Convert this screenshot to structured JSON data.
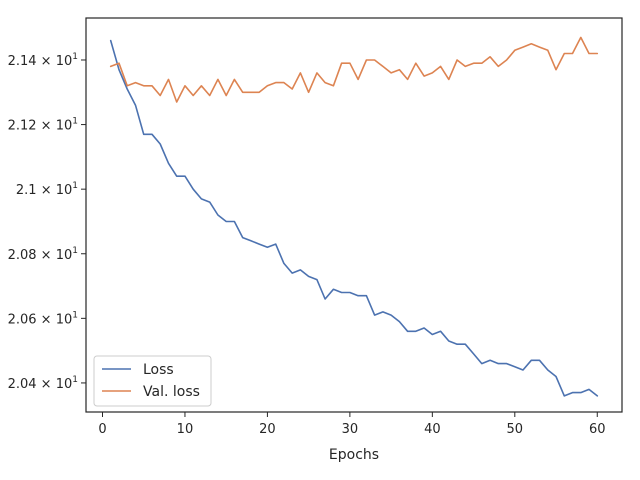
{
  "chart_data": {
    "type": "line",
    "xlabel": "Epochs",
    "ylabel": "",
    "xlim": [
      -2,
      63
    ],
    "ylim": [
      20.31,
      21.53
    ],
    "xticks": [
      0,
      10,
      20,
      30,
      40,
      50,
      60
    ],
    "xtick_labels": [
      "0",
      "10",
      "20",
      "30",
      "40",
      "50",
      "60"
    ],
    "yticks": [
      20.4,
      20.6,
      20.8,
      21.0,
      21.2,
      21.4
    ],
    "ytick_labels": [
      {
        "mantissa": "2.04",
        "exp": "1"
      },
      {
        "mantissa": "2.06",
        "exp": "1"
      },
      {
        "mantissa": "2.08",
        "exp": "1"
      },
      {
        "mantissa": "2.1",
        "exp": "1"
      },
      {
        "mantissa": "2.12",
        "exp": "1"
      },
      {
        "mantissa": "2.14",
        "exp": "1"
      }
    ],
    "legend_position": "lower-left",
    "grid": false,
    "series": [
      {
        "name": "Loss",
        "color": "#4c72b0",
        "x": [
          1,
          2,
          3,
          4,
          5,
          6,
          7,
          8,
          9,
          10,
          11,
          12,
          13,
          14,
          15,
          16,
          17,
          18,
          19,
          20,
          21,
          22,
          23,
          24,
          25,
          26,
          27,
          28,
          29,
          30,
          31,
          32,
          33,
          34,
          35,
          36,
          37,
          38,
          39,
          40,
          41,
          42,
          43,
          44,
          45,
          46,
          47,
          48,
          49,
          50,
          51,
          52,
          53,
          54,
          55,
          56,
          57,
          58,
          59,
          60
        ],
        "values": [
          21.46,
          21.37,
          21.31,
          21.26,
          21.17,
          21.17,
          21.14,
          21.08,
          21.04,
          21.04,
          21.0,
          20.97,
          20.96,
          20.92,
          20.9,
          20.9,
          20.85,
          20.84,
          20.83,
          20.82,
          20.83,
          20.77,
          20.74,
          20.75,
          20.73,
          20.72,
          20.66,
          20.69,
          20.68,
          20.68,
          20.67,
          20.67,
          20.61,
          20.62,
          20.61,
          20.59,
          20.56,
          20.56,
          20.57,
          20.55,
          20.56,
          20.53,
          20.52,
          20.52,
          20.49,
          20.46,
          20.47,
          20.46,
          20.46,
          20.45,
          20.44,
          20.47,
          20.47,
          20.44,
          20.42,
          20.36,
          20.37,
          20.37,
          20.38,
          20.36
        ]
      },
      {
        "name": "Val. loss",
        "color": "#dd8452",
        "x": [
          1,
          2,
          3,
          4,
          5,
          6,
          7,
          8,
          9,
          10,
          11,
          12,
          13,
          14,
          15,
          16,
          17,
          18,
          19,
          20,
          21,
          22,
          23,
          24,
          25,
          26,
          27,
          28,
          29,
          30,
          31,
          32,
          33,
          34,
          35,
          36,
          37,
          38,
          39,
          40,
          41,
          42,
          43,
          44,
          45,
          46,
          47,
          48,
          49,
          50,
          51,
          52,
          53,
          54,
          55,
          56,
          57,
          58,
          59,
          60
        ],
        "values": [
          21.38,
          21.39,
          21.32,
          21.33,
          21.32,
          21.32,
          21.29,
          21.34,
          21.27,
          21.32,
          21.29,
          21.32,
          21.29,
          21.34,
          21.29,
          21.34,
          21.3,
          21.3,
          21.3,
          21.32,
          21.33,
          21.33,
          21.31,
          21.36,
          21.3,
          21.36,
          21.33,
          21.32,
          21.39,
          21.39,
          21.34,
          21.4,
          21.4,
          21.38,
          21.36,
          21.37,
          21.34,
          21.39,
          21.35,
          21.36,
          21.38,
          21.34,
          21.4,
          21.38,
          21.39,
          21.39,
          21.41,
          21.38,
          21.4,
          21.43,
          21.44,
          21.45,
          21.44,
          21.43,
          21.37,
          21.42,
          21.42,
          21.47,
          21.42,
          21.42
        ]
      }
    ]
  }
}
